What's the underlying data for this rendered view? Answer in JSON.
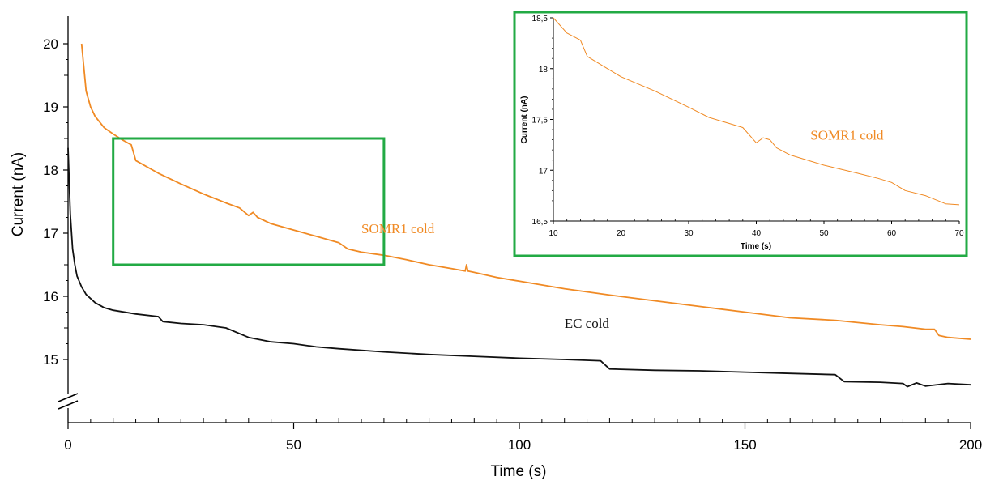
{
  "chart_data": [
    {
      "type": "line",
      "title": "",
      "xlabel": "Time (s)",
      "ylabel": "Current (nA)",
      "xlim": [
        0,
        200
      ],
      "ylim": [
        14.5,
        20
      ],
      "x_ticks": [
        "0",
        "50",
        "100",
        "150",
        "200"
      ],
      "y_ticks": [
        "15",
        "16",
        "17",
        "18",
        "19",
        "20"
      ],
      "axis_break": true,
      "grid": false,
      "legend": "none",
      "series": [
        {
          "name": "SOMR1 cold",
          "color": "#f08a24",
          "x": [
            3,
            4,
            5,
            6,
            8,
            10,
            12,
            14,
            15,
            20,
            25,
            30,
            35,
            38,
            40,
            41,
            42,
            45,
            50,
            55,
            60,
            62,
            65,
            70,
            75,
            80,
            85,
            88,
            88.3,
            88.6,
            90,
            95,
            100,
            110,
            120,
            130,
            140,
            150,
            160,
            170,
            180,
            185,
            190,
            192,
            193,
            195,
            200
          ],
          "y": [
            20.0,
            19.25,
            19.0,
            18.85,
            18.67,
            18.57,
            18.48,
            18.4,
            18.15,
            17.95,
            17.78,
            17.62,
            17.48,
            17.4,
            17.28,
            17.33,
            17.25,
            17.15,
            17.05,
            16.95,
            16.85,
            16.75,
            16.7,
            16.65,
            16.58,
            16.5,
            16.44,
            16.4,
            16.5,
            16.4,
            16.38,
            16.3,
            16.24,
            16.12,
            16.02,
            15.93,
            15.84,
            15.75,
            15.66,
            15.62,
            15.55,
            15.52,
            15.48,
            15.48,
            15.38,
            15.35,
            15.32
          ]
        },
        {
          "name": "EC cold",
          "color": "#111111",
          "x": [
            0,
            0.5,
            1,
            1.5,
            2,
            3,
            4,
            6,
            8,
            10,
            15,
            20,
            21,
            25,
            30,
            35,
            40,
            45,
            50,
            55,
            60,
            70,
            80,
            90,
            100,
            110,
            118,
            120,
            130,
            140,
            150,
            160,
            170,
            172,
            180,
            185,
            186,
            188,
            190,
            195,
            200
          ],
          "y": [
            18.35,
            17.3,
            16.75,
            16.5,
            16.32,
            16.15,
            16.03,
            15.9,
            15.82,
            15.78,
            15.72,
            15.68,
            15.6,
            15.57,
            15.55,
            15.5,
            15.35,
            15.28,
            15.25,
            15.2,
            15.17,
            15.12,
            15.08,
            15.05,
            15.02,
            15.0,
            14.98,
            14.85,
            14.83,
            14.82,
            14.8,
            14.78,
            14.76,
            14.65,
            14.64,
            14.62,
            14.57,
            14.63,
            14.58,
            14.62,
            14.6
          ]
        }
      ],
      "annotations": [
        {
          "text": "SOMR1 cold",
          "x": 65,
          "y": 17.0,
          "color": "#f08a24"
        },
        {
          "text": "EC cold",
          "x": 110,
          "y": 15.5,
          "color": "#111111"
        }
      ],
      "highlight_box": {
        "x_range": [
          10,
          70
        ],
        "y_range": [
          16.5,
          18.5
        ],
        "color": "#22aa44"
      }
    },
    {
      "type": "line",
      "title": "",
      "xlabel": "Time (s)",
      "ylabel": "Current (nA)",
      "xlim": [
        10,
        70
      ],
      "ylim": [
        16.5,
        18.5
      ],
      "x_ticks": [
        "10",
        "20",
        "30",
        "40",
        "50",
        "60",
        "70"
      ],
      "y_ticks": [
        "16,5",
        "17",
        "17,5",
        "18",
        "18,5"
      ],
      "grid": false,
      "legend": "none",
      "frame_color": "#22aa44",
      "series": [
        {
          "name": "SOMR1 cold",
          "color": "#f08a24",
          "x": [
            10,
            12,
            14,
            15,
            18,
            20,
            25,
            30,
            33,
            35,
            38,
            40,
            41,
            42,
            43,
            45,
            50,
            55,
            58,
            60,
            62,
            65,
            68,
            70
          ],
          "y": [
            18.5,
            18.35,
            18.28,
            18.12,
            18.0,
            17.92,
            17.78,
            17.62,
            17.52,
            17.48,
            17.42,
            17.27,
            17.32,
            17.3,
            17.22,
            17.15,
            17.05,
            16.97,
            16.92,
            16.88,
            16.8,
            16.75,
            16.67,
            16.66
          ]
        }
      ],
      "annotations": [
        {
          "text": "SOMR1 cold",
          "x": 48,
          "y": 17.3,
          "color": "#f08a24"
        }
      ]
    }
  ]
}
